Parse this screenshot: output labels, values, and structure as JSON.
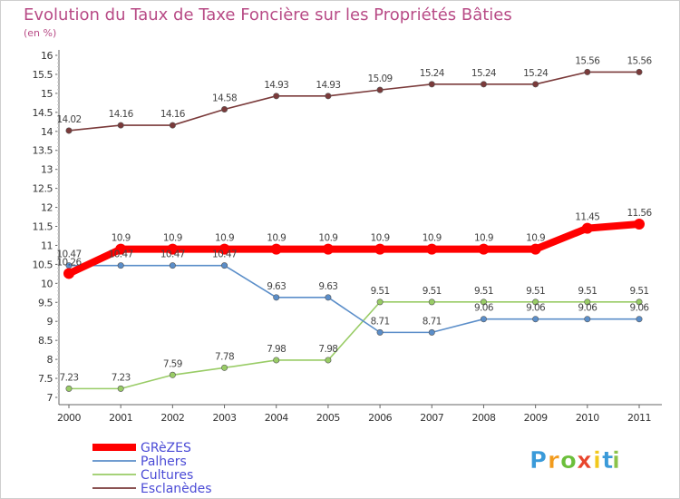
{
  "chart_data": {
    "type": "line",
    "title": "Evolution du Taux de Taxe Foncière sur les Propriétés Bâties",
    "subtitle": "(en %)",
    "x": [
      "2000",
      "2001",
      "2002",
      "2003",
      "2004",
      "2005",
      "2006",
      "2007",
      "2008",
      "2009",
      "2010",
      "2011"
    ],
    "ylim": [
      7,
      16
    ],
    "yticks": [
      "7",
      "7.5",
      "8",
      "8.5",
      "9",
      "9.5",
      "10",
      "10.5",
      "11",
      "11.5",
      "12",
      "12.5",
      "13",
      "13.5",
      "14",
      "14.5",
      "15",
      "15.5",
      "16"
    ],
    "series": [
      {
        "name": "GRèZES",
        "color": "#ff0000",
        "values": [
          10.26,
          10.9,
          10.9,
          10.9,
          10.9,
          10.9,
          10.9,
          10.9,
          10.9,
          10.9,
          11.45,
          11.56
        ],
        "labels": [
          "10.26",
          "10.9",
          "10.9",
          "10.9",
          "10.9",
          "10.9",
          "10.9",
          "10.9",
          "10.9",
          "10.9",
          "11.45",
          "11.56"
        ]
      },
      {
        "name": "Palhers",
        "color": "#5b8ec9",
        "values": [
          10.47,
          10.47,
          10.47,
          10.47,
          9.63,
          9.63,
          8.71,
          8.71,
          9.06,
          9.06,
          9.06,
          9.06
        ],
        "labels": [
          "10.47",
          "10.47",
          "10.47",
          "10.47",
          "9.63",
          "9.63",
          "8.71",
          "8.71",
          "9.06",
          "9.06",
          "9.06",
          "9.06"
        ]
      },
      {
        "name": "Cultures",
        "color": "#99cc66",
        "values": [
          7.23,
          7.23,
          7.59,
          7.78,
          7.98,
          7.98,
          9.51,
          9.51,
          9.51,
          9.51,
          9.51,
          9.51
        ],
        "labels": [
          "7.23",
          "7.23",
          "7.59",
          "7.78",
          "7.98",
          "7.98",
          "9.51",
          "9.51",
          "9.51",
          "9.51",
          "9.51",
          "9.51"
        ]
      },
      {
        "name": "Esclanèdes",
        "color": "#7a3a3a",
        "values": [
          14.02,
          14.16,
          14.16,
          14.58,
          14.93,
          14.93,
          15.09,
          15.24,
          15.24,
          15.24,
          15.56,
          15.56
        ],
        "labels": [
          "14.02",
          "14.16",
          "14.16",
          "14.58",
          "14.93",
          "14.93",
          "15.09",
          "15.24",
          "15.24",
          "15.24",
          "15.56",
          "15.56"
        ]
      }
    ],
    "legend_position": "bottom-left",
    "grid": false
  },
  "brand": {
    "logo_letters": [
      "P",
      "r",
      "o",
      "x",
      "i",
      "t",
      "i"
    ],
    "logo_colors": [
      "#3a9ad9",
      "#f29b1d",
      "#6bbf3a",
      "#e8452c",
      "#f2c81d",
      "#3a9ad9",
      "#8bc34a"
    ]
  }
}
